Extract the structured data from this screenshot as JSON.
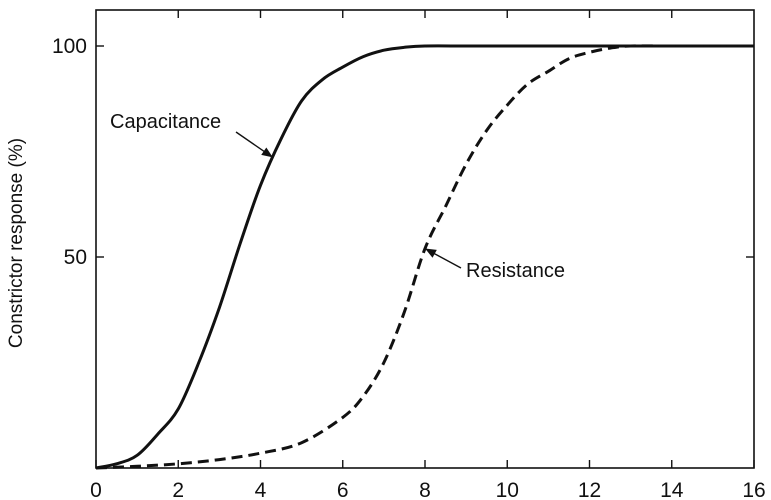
{
  "chart_data": {
    "type": "line",
    "title": "",
    "xlabel": "",
    "ylabel": "Constrictor response (%)",
    "xlim": [
      0,
      16
    ],
    "ylim": [
      0,
      100
    ],
    "x_ticks": [
      0,
      2,
      4,
      6,
      8,
      10,
      12,
      14,
      16
    ],
    "y_ticks": [
      50,
      100
    ],
    "y_tick_labels": [
      "50",
      "100"
    ],
    "grid": false,
    "legend": "none",
    "series": [
      {
        "name": "Capacitance",
        "style": "solid",
        "color": "#111111",
        "x": [
          0,
          0.5,
          1,
          1.5,
          2,
          2.5,
          3,
          3.5,
          4,
          4.5,
          5,
          5.5,
          6,
          6.5,
          7,
          7.5,
          8,
          9,
          10,
          12,
          14,
          16
        ],
        "y": [
          0,
          1,
          3,
          8,
          14,
          25,
          38,
          53,
          67,
          78,
          87,
          92,
          95,
          97.5,
          99,
          99.7,
          100,
          100,
          100,
          100,
          100,
          100
        ]
      },
      {
        "name": "Resistance",
        "style": "dashed",
        "color": "#111111",
        "x": [
          0,
          1,
          2,
          3,
          4,
          5,
          6,
          6.5,
          7,
          7.5,
          8,
          8.5,
          9,
          9.5,
          10,
          10.5,
          11,
          11.5,
          12,
          12.5,
          13,
          14,
          16
        ],
        "y": [
          0,
          0.4,
          1,
          2,
          3.5,
          6,
          12,
          17,
          25,
          37,
          52,
          62,
          72,
          80,
          86,
          91,
          94,
          97,
          98.5,
          99.5,
          100,
          100,
          100
        ]
      }
    ],
    "annotations": [
      {
        "text": "Capacitance",
        "series": 0,
        "point_x": 4.3
      },
      {
        "text": "Resistance",
        "series": 1,
        "point_x": 8.0
      }
    ]
  }
}
